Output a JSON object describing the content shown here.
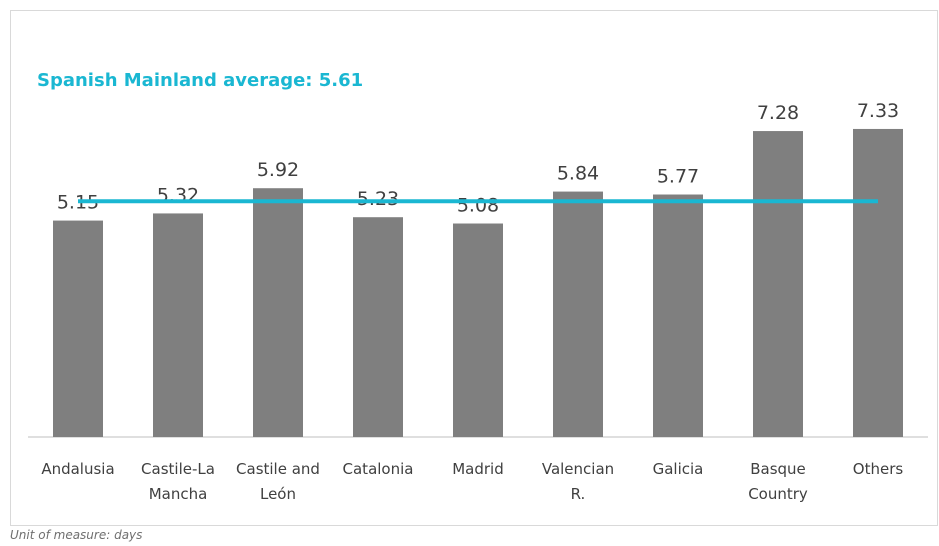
{
  "chart_data": {
    "type": "bar",
    "title": "Spanish Mainland average: 5.61",
    "categories": [
      [
        "Andalusia"
      ],
      [
        "Castile-La",
        "Mancha"
      ],
      [
        "Castile and",
        "León"
      ],
      [
        "Catalonia"
      ],
      [
        "Madrid"
      ],
      [
        "Valencian",
        "R."
      ],
      [
        "Galicia"
      ],
      [
        "Basque",
        "Country"
      ],
      [
        "Others"
      ]
    ],
    "values": [
      5.15,
      5.32,
      5.92,
      5.23,
      5.08,
      5.84,
      5.77,
      7.28,
      7.33
    ],
    "value_labels": [
      "5.15",
      "5.32",
      "5.92",
      "5.23",
      "5.08",
      "5.84",
      "5.77",
      "7.28",
      "7.33"
    ],
    "reference_line": {
      "value": 5.61
    },
    "ylim": [
      0,
      7.9
    ],
    "grid": false,
    "legend": "none",
    "xlabel": "",
    "ylabel": "",
    "colors": {
      "bar": "#7f7f7f",
      "average_line": "#1ab7d2",
      "axis": "#bfbfbf",
      "label": "#404040"
    },
    "note": "Unit of measure: days"
  }
}
